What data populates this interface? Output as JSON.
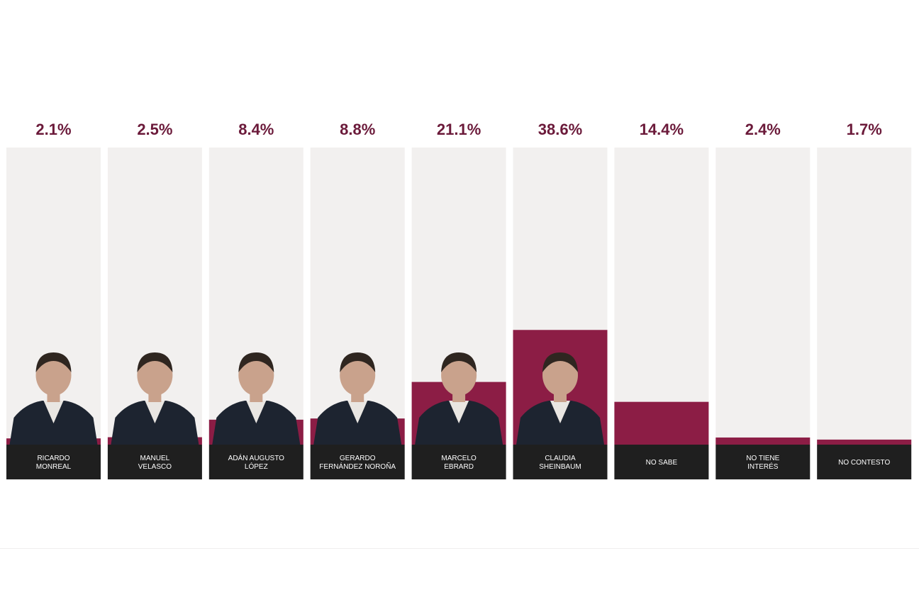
{
  "chart_data": {
    "type": "bar",
    "categories": [
      "RICARDO MONREAL",
      "MANUEL VELASCO",
      "ADÁN AUGUSTO LÓPEZ",
      "GERARDO FERNÁNDEZ NOROÑA",
      "MARCELO EBRARD",
      "CLAUDIA SHEINBAUM",
      "NO SABE",
      "NO TIENE INTERÉS",
      "NO CONTESTO"
    ],
    "label_lines": [
      [
        "RICARDO",
        "MONREAL"
      ],
      [
        "MANUEL",
        "VELASCO"
      ],
      [
        "ADÁN AUGUSTO",
        "LÓPEZ"
      ],
      [
        "GERARDO",
        "FERNÁNDEZ NOROÑA"
      ],
      [
        "MARCELO",
        "EBRARD"
      ],
      [
        "CLAUDIA",
        "SHEINBAUM"
      ],
      [
        "NO SABE"
      ],
      [
        "NO TIENE",
        "INTERÉS"
      ],
      [
        "NO CONTESTO"
      ]
    ],
    "values": [
      2.1,
      2.5,
      8.4,
      8.8,
      21.1,
      38.6,
      14.4,
      2.4,
      1.7
    ],
    "value_labels": [
      "2.1%",
      "2.5%",
      "8.4%",
      "8.8%",
      "21.1%",
      "38.6%",
      "14.4%",
      "2.4%",
      "1.7%"
    ],
    "has_photo": [
      true,
      true,
      true,
      true,
      true,
      true,
      false,
      false,
      false
    ],
    "unit": "%",
    "ylim": [
      0,
      100
    ],
    "title": "",
    "xlabel": "",
    "ylabel": "",
    "grid": false,
    "legend": "none"
  },
  "colors": {
    "bar": "#8c1d45",
    "track": "#f2f0ef",
    "value_text": "#6b1a3a",
    "label_box": "#1f1f1f",
    "label_text": "#ffffff",
    "photo_skin": "#c9a28c",
    "photo_hair": "#2f2620",
    "photo_suit": "#1d2430"
  },
  "icons": {
    "photo": "person-photo-icon"
  }
}
